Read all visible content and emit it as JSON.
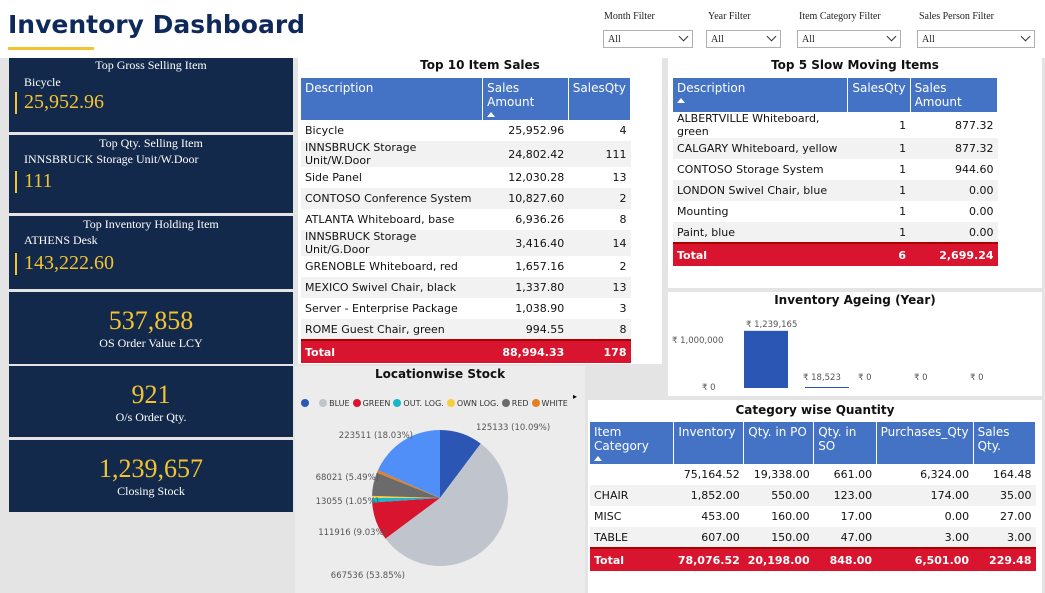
{
  "header": {
    "title": "Inventory Dashboard"
  },
  "filters": [
    {
      "label": "Month Filter",
      "value": "All"
    },
    {
      "label": "Year Filter",
      "value": "All"
    },
    {
      "label": "Item Category Filter",
      "value": "All"
    },
    {
      "label": "Sales Person Filter",
      "value": "All"
    }
  ],
  "cards": [
    {
      "title": "Top Gross Selling Item",
      "name": "Bicycle",
      "value": "25,952.96"
    },
    {
      "title": "Top Qty. Selling Item",
      "name": "INNSBRUCK Storage Unit/W.Door",
      "value": "111"
    },
    {
      "title": "Top Inventory Holding Item",
      "name": "ATHENS Desk",
      "value": "143,222.60"
    }
  ],
  "kpis": [
    {
      "value": "537,858",
      "label": "OS Order Value LCY"
    },
    {
      "value": "921",
      "label": "O/s Order Qty."
    },
    {
      "value": "1,239,657",
      "label": "Closing Stock"
    }
  ],
  "top10": {
    "title": "Top 10 Item Sales",
    "headers": [
      "Description",
      "Sales Amount",
      "SalesQty"
    ],
    "rows": [
      [
        "Bicycle",
        "25,952.96",
        "4"
      ],
      [
        "INNSBRUCK Storage Unit/W.Door",
        "24,802.42",
        "111"
      ],
      [
        "Side Panel",
        "12,030.28",
        "13"
      ],
      [
        "CONTOSO Conference System",
        "10,827.60",
        "2"
      ],
      [
        "ATLANTA Whiteboard, base",
        "6,936.26",
        "8"
      ],
      [
        "INNSBRUCK Storage Unit/G.Door",
        "3,416.40",
        "14"
      ],
      [
        "GRENOBLE Whiteboard, red",
        "1,657.16",
        "2"
      ],
      [
        "MEXICO Swivel Chair, black",
        "1,337.80",
        "13"
      ],
      [
        "Server - Enterprise Package",
        "1,038.90",
        "3"
      ],
      [
        "ROME Guest Chair, green",
        "994.55",
        "8"
      ]
    ],
    "total": [
      "Total",
      "88,994.33",
      "178"
    ]
  },
  "slow5": {
    "title": "Top 5 Slow Moving Items",
    "headers": [
      "Description",
      "SalesQty",
      "Sales Amount"
    ],
    "rows": [
      [
        "ALBERTVILLE Whiteboard, green",
        "1",
        "877.32"
      ],
      [
        "CALGARY Whiteboard, yellow",
        "1",
        "877.32"
      ],
      [
        "CONTOSO Storage System",
        "1",
        "944.60"
      ],
      [
        "LONDON Swivel Chair, blue",
        "1",
        "0.00"
      ],
      [
        "Mounting",
        "1",
        "0.00"
      ],
      [
        "Paint, blue",
        "1",
        "0.00"
      ]
    ],
    "total": [
      "Total",
      "6",
      "2,699.24"
    ]
  },
  "ageing": {
    "title": "Inventory Ageing (Year)",
    "y_ticks": [
      "₹ 1,000,000",
      "₹ 0"
    ],
    "bar_labels": [
      "₹ 1,239,165",
      "₹ 18,523",
      "₹ 0",
      "₹ 0",
      "₹ 0"
    ]
  },
  "chart_data": {
    "type": "bar",
    "title": "Inventory Ageing (Year)",
    "values": [
      1239165,
      18523,
      0,
      0,
      0
    ],
    "ylim": [
      0,
      1300000
    ],
    "y_ticks": [
      0,
      1000000
    ]
  },
  "location": {
    "title": "Locationwise Stock",
    "legend": [
      {
        "name": "BLUE",
        "color": "#c0c4cc"
      },
      {
        "name": "GREEN",
        "color": "#d9142e"
      },
      {
        "name": "OUT. LOG.",
        "color": "#19b5c8"
      },
      {
        "name": "OWN LOG.",
        "color": "#f4d03f"
      },
      {
        "name": "RED",
        "color": "#6b6b6b"
      },
      {
        "name": "WHITE",
        "color": "#e67e22"
      }
    ],
    "first_legend_color": "#2b56b3",
    "slices": [
      {
        "value": 125133,
        "label": "125133 (10.09%)",
        "color": "#2b56b3"
      },
      {
        "value": 667536,
        "label": "667536 (53.85%)",
        "color": "#c0c4cc"
      },
      {
        "value": 111916,
        "label": "111916 (9.03%)",
        "color": "#d9142e"
      },
      {
        "value": 13055,
        "label": "13055 (1.05%)",
        "color": "#19b5c8"
      },
      {
        "value": 6000,
        "label": "",
        "color": "#f4d03f"
      },
      {
        "value": 68021,
        "label": "68021 (5.49%)",
        "color": "#6b6b6b"
      },
      {
        "value": 8000,
        "label": "",
        "color": "#e67e22"
      },
      {
        "value": 223511,
        "label": "223511 (18.03%)",
        "color": "#4f8ff7"
      }
    ]
  },
  "category": {
    "title": "Category wise Quantity",
    "headers": [
      "Item Category",
      "Inventory",
      "Qty. in PO",
      "Qty. in SO",
      "Purchases_Qty",
      "Sales Qty."
    ],
    "rows": [
      [
        "",
        "75,164.52",
        "19,338.00",
        "661.00",
        "6,324.00",
        "164.48"
      ],
      [
        "CHAIR",
        "1,852.00",
        "550.00",
        "123.00",
        "174.00",
        "35.00"
      ],
      [
        "MISC",
        "453.00",
        "160.00",
        "17.00",
        "0.00",
        "27.00"
      ],
      [
        "TABLE",
        "607.00",
        "150.00",
        "47.00",
        "3.00",
        "3.00"
      ]
    ],
    "total": [
      "Total",
      "78,076.52",
      "20,198.00",
      "848.00",
      "6,501.00",
      "229.48"
    ]
  }
}
